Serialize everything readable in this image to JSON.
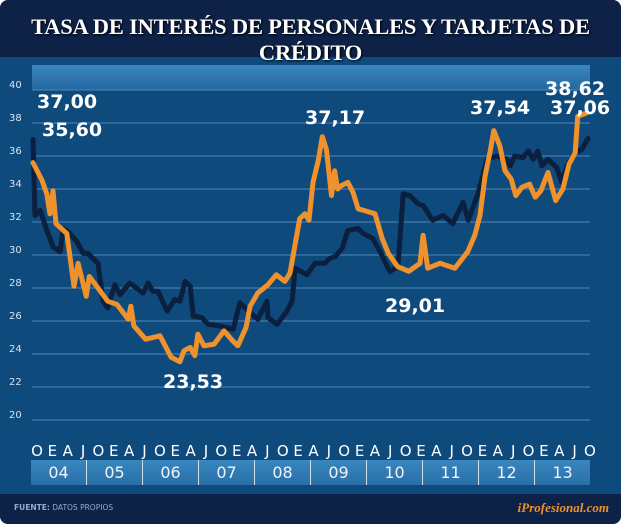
{
  "title": "TASA DE INTERÉS DE PERSONALES Y TARJETAS DE CRÉDITO",
  "footer": {
    "source_label": "FUENTE:",
    "source_value": "DATOS PROPIOS",
    "brand": "iProfesional.com"
  },
  "colors": {
    "series_dark": "#0b1f3f",
    "series_orange": "#f0922b",
    "background": "#0f4a7d",
    "title_bar": "#0e2146"
  },
  "chart_data": {
    "type": "line",
    "title": "TASA DE INTERÉS DE PERSONALES Y TARJETAS DE CRÉDITO",
    "xlabel": "",
    "ylabel": "",
    "x_units": "months since Oct 2003",
    "xlim": [
      0,
      108.6
    ],
    "ylim": [
      20,
      40
    ],
    "yticks": [
      20,
      22,
      24,
      26,
      28,
      30,
      32,
      34,
      36,
      38,
      40
    ],
    "grid": true,
    "quarter_labels": [
      "O",
      "E",
      "A",
      "J",
      "O",
      "E",
      "A",
      "J",
      "O",
      "E",
      "A",
      "J",
      "O",
      "E",
      "A",
      "J",
      "O",
      "E",
      "A",
      "J",
      "O",
      "E",
      "A",
      "J",
      "O",
      "E",
      "A",
      "J",
      "O",
      "E",
      "A",
      "J",
      "O",
      "E",
      "A",
      "J",
      "O"
    ],
    "year_labels": [
      "04",
      "05",
      "06",
      "07",
      "08",
      "09",
      "10",
      "11",
      "12",
      "13"
    ],
    "series": [
      {
        "name": "dark",
        "color": "#0b1f3f",
        "points": [
          [
            0,
            37.0
          ],
          [
            0.4,
            32.4
          ],
          [
            1.4,
            32.7
          ],
          [
            2.7,
            31.5
          ],
          [
            3.9,
            30.5
          ],
          [
            5.3,
            30.2
          ],
          [
            5.9,
            31.6
          ],
          [
            7.2,
            31.3
          ],
          [
            8.6,
            30.8
          ],
          [
            9.8,
            30.1
          ],
          [
            10.7,
            30.1
          ],
          [
            12.7,
            29.5
          ],
          [
            13.7,
            27.2
          ],
          [
            14.6,
            26.8
          ],
          [
            16,
            28.2
          ],
          [
            17,
            27.6
          ],
          [
            18.9,
            28.3
          ],
          [
            21.5,
            27.7
          ],
          [
            22.5,
            28.3
          ],
          [
            23.4,
            27.8
          ],
          [
            24.4,
            27.8
          ],
          [
            26.2,
            26.6
          ],
          [
            27.7,
            27.3
          ],
          [
            28.7,
            27.2
          ],
          [
            29.7,
            28.4
          ],
          [
            30.7,
            28.1
          ],
          [
            31.3,
            26.3
          ],
          [
            33,
            26.2
          ],
          [
            34.2,
            25.8
          ],
          [
            36.5,
            25.7
          ],
          [
            39.1,
            25.5
          ],
          [
            40.4,
            27.1
          ],
          [
            41.8,
            26.7
          ],
          [
            43.9,
            26.1
          ],
          [
            45.7,
            27.2
          ],
          [
            45.9,
            26.2
          ],
          [
            47.7,
            25.8
          ],
          [
            49.6,
            26.6
          ],
          [
            50.6,
            27.2
          ],
          [
            51.2,
            29.2
          ],
          [
            53.5,
            28.8
          ],
          [
            55.1,
            29.5
          ],
          [
            57,
            29.5
          ],
          [
            58,
            29.8
          ],
          [
            59,
            29.9
          ],
          [
            60.4,
            30.4
          ],
          [
            61.5,
            31.5
          ],
          [
            63.5,
            31.6
          ],
          [
            64.5,
            31.3
          ],
          [
            66.4,
            31.0
          ],
          [
            67.8,
            30.2
          ],
          [
            69.7,
            29.0
          ],
          [
            71.3,
            29.3
          ],
          [
            72.3,
            33.7
          ],
          [
            73.6,
            33.6
          ],
          [
            75.2,
            33.1
          ],
          [
            76.2,
            33.0
          ],
          [
            78.1,
            32.1
          ],
          [
            80.1,
            32.4
          ],
          [
            82,
            31.9
          ],
          [
            84,
            33.2
          ],
          [
            85,
            32.1
          ],
          [
            86.9,
            33.7
          ],
          [
            88.7,
            35.8
          ],
          [
            90.6,
            36.0
          ],
          [
            92.6,
            35.8
          ],
          [
            93.2,
            35.4
          ],
          [
            94.1,
            36.0
          ],
          [
            95.7,
            35.9
          ],
          [
            96.7,
            36.3
          ],
          [
            97.7,
            35.8
          ],
          [
            98.6,
            36.3
          ],
          [
            99.4,
            35.4
          ],
          [
            100.6,
            35.8
          ],
          [
            102.3,
            35.3
          ],
          [
            103.3,
            34.4
          ],
          [
            104.3,
            35.4
          ],
          [
            105.9,
            36.2
          ],
          [
            107.2,
            36.4
          ],
          [
            108.4,
            37.06
          ]
        ]
      },
      {
        "name": "orange",
        "color": "#f0922b",
        "points": [
          [
            0,
            35.6
          ],
          [
            1.8,
            34.5
          ],
          [
            2.7,
            33.7
          ],
          [
            3.3,
            32.5
          ],
          [
            3.9,
            33.9
          ],
          [
            4.5,
            31.9
          ],
          [
            6.6,
            31.3
          ],
          [
            8,
            28.1
          ],
          [
            8.8,
            29.5
          ],
          [
            10.4,
            27.5
          ],
          [
            11,
            28.7
          ],
          [
            12.7,
            28.0
          ],
          [
            14.6,
            27.2
          ],
          [
            16.4,
            27.0
          ],
          [
            18.6,
            26.1
          ],
          [
            19.1,
            26.9
          ],
          [
            19.7,
            25.7
          ],
          [
            22,
            24.9
          ],
          [
            24.8,
            25.1
          ],
          [
            27,
            23.8
          ],
          [
            28.7,
            23.53
          ],
          [
            29.5,
            24.2
          ],
          [
            30.7,
            24.4
          ],
          [
            31.6,
            23.9
          ],
          [
            32.2,
            25.2
          ],
          [
            33.4,
            24.5
          ],
          [
            35.4,
            24.6
          ],
          [
            37.3,
            25.4
          ],
          [
            39,
            24.8
          ],
          [
            40,
            24.5
          ],
          [
            41.6,
            25.6
          ],
          [
            42.4,
            26.9
          ],
          [
            43.9,
            27.7
          ],
          [
            45.9,
            28.2
          ],
          [
            47.5,
            28.8
          ],
          [
            49.2,
            28.4
          ],
          [
            50.2,
            28.9
          ],
          [
            52.1,
            32.2
          ],
          [
            53.1,
            32.5
          ],
          [
            53.9,
            32.1
          ],
          [
            54.7,
            34.4
          ],
          [
            55.7,
            35.7
          ],
          [
            56.5,
            37.17
          ],
          [
            57.3,
            36.4
          ],
          [
            58.3,
            33.6
          ],
          [
            58.9,
            35.1
          ],
          [
            59.5,
            34.0
          ],
          [
            60.2,
            34.2
          ],
          [
            61.5,
            34.4
          ],
          [
            62.5,
            33.8
          ],
          [
            63.5,
            32.8
          ],
          [
            64.6,
            32.7
          ],
          [
            66.8,
            32.5
          ],
          [
            68.2,
            31.0
          ],
          [
            69.4,
            30.1
          ],
          [
            71.2,
            29.3
          ],
          [
            73.4,
            29.01
          ],
          [
            75.6,
            29.5
          ],
          [
            76.2,
            31.2
          ],
          [
            77.1,
            29.2
          ],
          [
            79.5,
            29.5
          ],
          [
            82.4,
            29.2
          ],
          [
            84.9,
            30.2
          ],
          [
            86.3,
            31.2
          ],
          [
            87.3,
            32.4
          ],
          [
            88.3,
            34.8
          ],
          [
            89.3,
            36.3
          ],
          [
            90,
            37.54
          ],
          [
            91.2,
            36.6
          ],
          [
            92.2,
            35.1
          ],
          [
            93.4,
            34.6
          ],
          [
            94.3,
            33.6
          ],
          [
            95.5,
            34.1
          ],
          [
            97,
            34.3
          ],
          [
            98.1,
            33.5
          ],
          [
            99.2,
            33.9
          ],
          [
            100.6,
            35.0
          ],
          [
            102.1,
            33.3
          ],
          [
            103.5,
            34.0
          ],
          [
            104.7,
            35.5
          ],
          [
            105.9,
            36.2
          ],
          [
            106.4,
            38.4
          ],
          [
            108.2,
            38.62
          ]
        ]
      }
    ],
    "annotations": [
      {
        "text": "37,00",
        "series": "dark",
        "x": 0,
        "value": 37.0
      },
      {
        "text": "35,60",
        "series": "orange",
        "x": 0,
        "value": 35.6
      },
      {
        "text": "23,53",
        "series": "orange",
        "x": 28.7,
        "value": 23.53
      },
      {
        "text": "37,17",
        "series": "orange",
        "x": 56.5,
        "value": 37.17
      },
      {
        "text": "29,01",
        "series": "orange",
        "x": 73.4,
        "value": 29.01
      },
      {
        "text": "37,54",
        "series": "orange",
        "x": 90,
        "value": 37.54
      },
      {
        "text": "38,62",
        "series": "orange",
        "x": 108.2,
        "value": 38.62
      },
      {
        "text": "37,06",
        "series": "dark",
        "x": 108.4,
        "value": 37.06
      }
    ]
  }
}
